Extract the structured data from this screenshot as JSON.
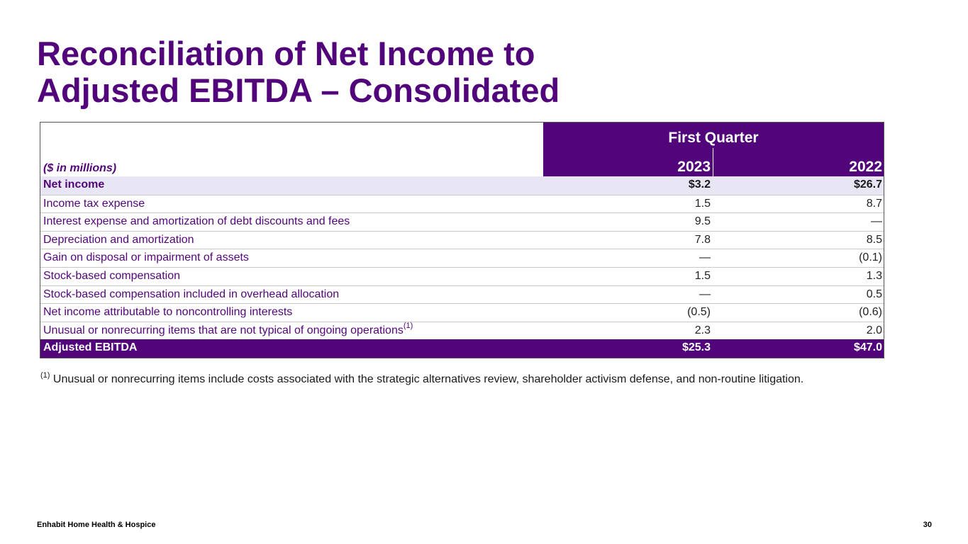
{
  "title": {
    "line1": "Reconciliation of Net Income to",
    "line2": "Adjusted EBITDA – Consolidated"
  },
  "table": {
    "units_label": "($ in millions)",
    "group_header": "First Quarter",
    "year1": "2023",
    "year2": "2022",
    "rows": [
      {
        "label": "Net income",
        "v2023": "$3.2",
        "v2022": "$26.7"
      },
      {
        "label": "Income tax expense",
        "v2023": "1.5",
        "v2022": "8.7"
      },
      {
        "label": "Interest expense and amortization of debt discounts and fees",
        "v2023": "9.5",
        "v2022": "—"
      },
      {
        "label": "Depreciation and amortization",
        "v2023": "7.8",
        "v2022": "8.5"
      },
      {
        "label": "Gain on disposal or impairment of assets",
        "v2023": "—",
        "v2022": "(0.1)"
      },
      {
        "label": "Stock-based compensation",
        "v2023": "1.5",
        "v2022": "1.3"
      },
      {
        "label": "Stock-based compensation included in overhead allocation",
        "v2023": "—",
        "v2022": "0.5"
      },
      {
        "label": "Net income attributable to noncontrolling interests",
        "v2023": "(0.5)",
        "v2022": "(0.6)"
      },
      {
        "label": "Unusual or nonrecurring items that are not typical of ongoing operations",
        "footnote_ref": "(1)",
        "v2023": "2.3",
        "v2022": "2.0"
      }
    ],
    "total": {
      "label": "Adjusted EBITDA",
      "v2023": "$25.3",
      "v2022": "$47.0"
    }
  },
  "footnote": {
    "marker": "(1)",
    "text": " Unusual or nonrecurring items include costs associated with the strategic alternatives review, shareholder activism defense, and non-routine litigation."
  },
  "footer": {
    "company": "Enhabit Home Health & Hospice",
    "page_number": "30"
  },
  "colors": {
    "brand_purple": "#52057b",
    "row_shade": "#e8e6f5"
  }
}
